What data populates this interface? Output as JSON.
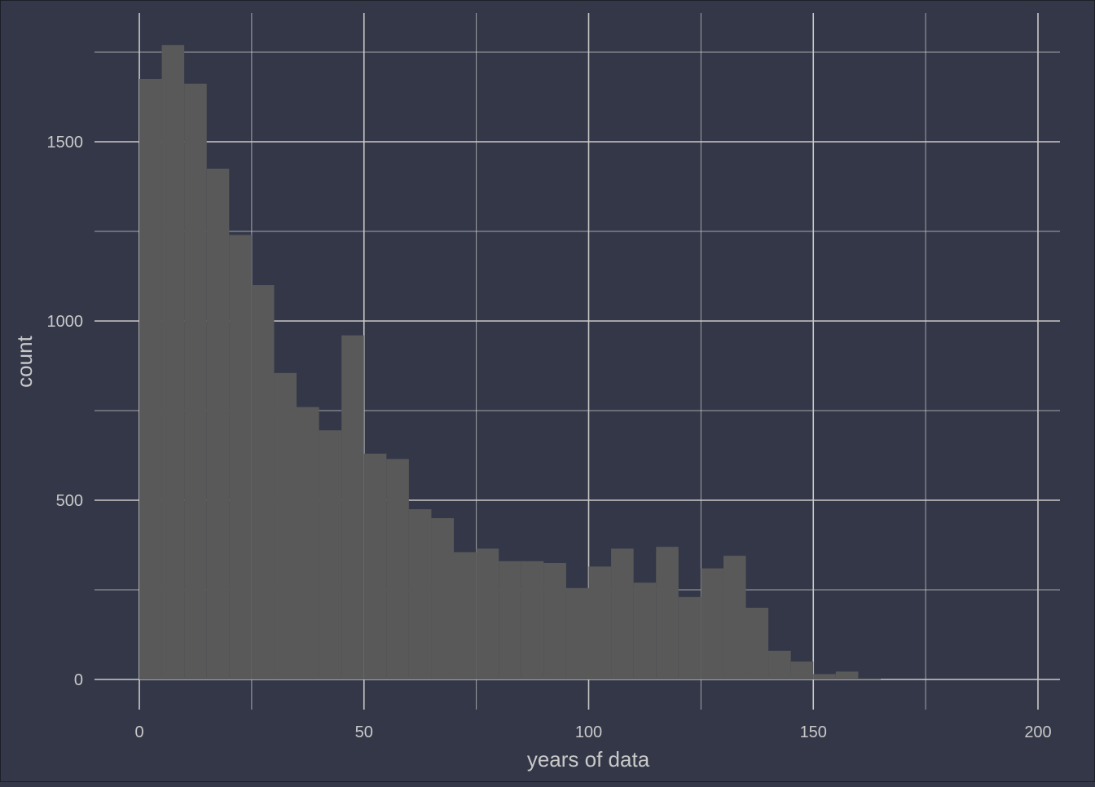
{
  "chart_data": {
    "type": "bar",
    "subtype": "histogram",
    "title": "",
    "xlabel": "years of data",
    "ylabel": "count",
    "xlim": [
      -10,
      210
    ],
    "ylim": [
      0,
      1750
    ],
    "x_ticks": [
      0,
      50,
      100,
      150,
      200
    ],
    "x_tick_labels": [
      "0",
      "50",
      "100",
      "150",
      "200"
    ],
    "y_ticks": [
      0,
      500,
      1000,
      1500
    ],
    "y_tick_labels": [
      "0",
      "500",
      "1000",
      "1500"
    ],
    "grid": true,
    "bin_width": 5,
    "bins": [
      {
        "x0": 0,
        "x1": 5,
        "count": 1675
      },
      {
        "x0": 5,
        "x1": 10,
        "count": 1770
      },
      {
        "x0": 10,
        "x1": 15,
        "count": 1662
      },
      {
        "x0": 15,
        "x1": 20,
        "count": 1425
      },
      {
        "x0": 20,
        "x1": 25,
        "count": 1240
      },
      {
        "x0": 25,
        "x1": 30,
        "count": 1100
      },
      {
        "x0": 30,
        "x1": 35,
        "count": 855
      },
      {
        "x0": 35,
        "x1": 40,
        "count": 760
      },
      {
        "x0": 40,
        "x1": 45,
        "count": 695
      },
      {
        "x0": 45,
        "x1": 50,
        "count": 960
      },
      {
        "x0": 50,
        "x1": 55,
        "count": 630
      },
      {
        "x0": 55,
        "x1": 60,
        "count": 615
      },
      {
        "x0": 60,
        "x1": 65,
        "count": 475
      },
      {
        "x0": 65,
        "x1": 70,
        "count": 450
      },
      {
        "x0": 70,
        "x1": 75,
        "count": 355
      },
      {
        "x0": 75,
        "x1": 80,
        "count": 365
      },
      {
        "x0": 80,
        "x1": 85,
        "count": 330
      },
      {
        "x0": 85,
        "x1": 90,
        "count": 330
      },
      {
        "x0": 90,
        "x1": 95,
        "count": 325
      },
      {
        "x0": 95,
        "x1": 100,
        "count": 255
      },
      {
        "x0": 100,
        "x1": 105,
        "count": 315
      },
      {
        "x0": 105,
        "x1": 110,
        "count": 365
      },
      {
        "x0": 110,
        "x1": 115,
        "count": 270
      },
      {
        "x0": 115,
        "x1": 120,
        "count": 370
      },
      {
        "x0": 120,
        "x1": 125,
        "count": 230
      },
      {
        "x0": 125,
        "x1": 130,
        "count": 310
      },
      {
        "x0": 130,
        "x1": 135,
        "count": 345
      },
      {
        "x0": 135,
        "x1": 140,
        "count": 200
      },
      {
        "x0": 140,
        "x1": 145,
        "count": 80
      },
      {
        "x0": 145,
        "x1": 150,
        "count": 50
      },
      {
        "x0": 150,
        "x1": 155,
        "count": 15
      },
      {
        "x0": 155,
        "x1": 160,
        "count": 22
      },
      {
        "x0": 160,
        "x1": 165,
        "count": 3
      }
    ]
  },
  "colors": {
    "background": "#333748",
    "bar_fill": "#595959",
    "grid_line": "#c9c9c9",
    "text": "#c9c9c9"
  }
}
